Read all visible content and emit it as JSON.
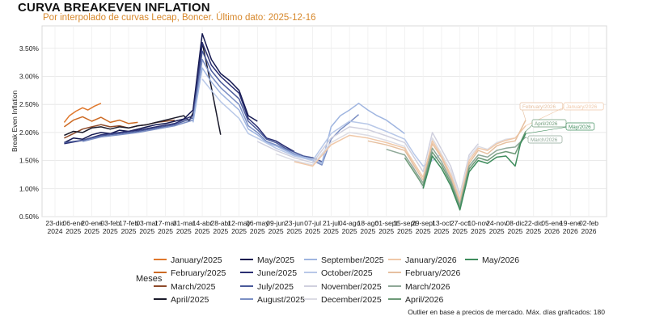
{
  "chart_data": {
    "type": "line",
    "title": "CURVA BREAKEVEN INFLATION",
    "subtitle": "Por interpolado de curvas Lecap, Boncer. Último dato: 2025-12-16",
    "ylabel": "Break Even Inflation",
    "xlabel": "",
    "caption": "Outlier en base a precios de mercado. Máx. días graficados: 180",
    "legend_title": "Meses",
    "legend_position": "bottom",
    "grid": true,
    "ylim": [
      0.5,
      3.9
    ],
    "y_ticks": [
      0.5,
      1.0,
      1.5,
      2.0,
      2.5,
      3.0,
      3.5
    ],
    "y_tick_labels": [
      "0.50%",
      "1.00%",
      "1.50%",
      "2.00%",
      "2.50%",
      "3.00%",
      "3.50%"
    ],
    "x_range": [
      "2024-12-23",
      "2026-02-02"
    ],
    "x_ticks": [
      "2024-12-23",
      "2025-01-06",
      "2025-01-20",
      "2025-02-03",
      "2025-02-17",
      "2025-03-03",
      "2025-03-17",
      "2025-03-31",
      "2025-04-14",
      "2025-04-28",
      "2025-05-12",
      "2025-05-26",
      "2025-06-09",
      "2025-06-23",
      "2025-07-07",
      "2025-07-21",
      "2025-08-04",
      "2025-08-18",
      "2025-09-01",
      "2025-09-15",
      "2025-09-29",
      "2025-10-13",
      "2025-10-27",
      "2025-11-10",
      "2025-11-24",
      "2025-12-08",
      "2025-12-22",
      "2026-01-05",
      "2026-01-19",
      "2026-02-02"
    ],
    "x_tick_top": [
      "23-dic",
      "06-ene",
      "20-ene",
      "03-feb",
      "17-feb",
      "03-mar",
      "17-mar",
      "31-mar",
      "14-abr",
      "28-abr",
      "12-may",
      "26-may",
      "09-jun",
      "23-jun",
      "07-jul",
      "21-jul",
      "04-ago",
      "18-ago",
      "01-sept",
      "15-sept",
      "29-sept",
      "13-oct",
      "27-oct",
      "10-nov",
      "24-nov",
      "08-dic",
      "22-dic",
      "05-ene",
      "19-ene",
      "02-feb"
    ],
    "x_tick_bottom": [
      "2024",
      "2025",
      "2025",
      "2025",
      "2025",
      "2025",
      "2025",
      "2025",
      "2025",
      "2025",
      "2025",
      "2025",
      "2025",
      "2025",
      "2025",
      "2025",
      "2025",
      "2025",
      "2025",
      "2025",
      "2025",
      "2025",
      "2025",
      "2025",
      "2025",
      "2025",
      "2025",
      "2026",
      "2026",
      "2026"
    ],
    "series": [
      {
        "name": "January/2025",
        "color": "#e0782c",
        "x": [
          "2024-12-30",
          "2025-01-03",
          "2025-01-08",
          "2025-01-13",
          "2025-01-17",
          "2025-01-22",
          "2025-01-27"
        ],
        "values": [
          2.18,
          2.3,
          2.38,
          2.44,
          2.4,
          2.47,
          2.52
        ]
      },
      {
        "name": "February/2025",
        "color": "#cc6a24",
        "x": [
          "2024-12-30",
          "2025-01-06",
          "2025-01-13",
          "2025-01-20",
          "2025-01-27",
          "2025-02-03",
          "2025-02-10",
          "2025-02-17",
          "2025-02-24"
        ],
        "values": [
          2.1,
          2.22,
          2.28,
          2.2,
          2.27,
          2.18,
          2.22,
          2.16,
          2.18
        ]
      },
      {
        "name": "March/2025",
        "color": "#8e4a2a",
        "x": [
          "2024-12-30",
          "2025-01-06",
          "2025-01-13",
          "2025-01-20",
          "2025-01-27",
          "2025-02-03",
          "2025-02-10",
          "2025-02-17",
          "2025-02-24",
          "2025-03-03",
          "2025-03-10",
          "2025-03-17",
          "2025-03-24"
        ],
        "values": [
          1.9,
          1.98,
          2.06,
          2.1,
          2.14,
          2.1,
          2.12,
          2.08,
          2.12,
          2.14,
          2.18,
          2.2,
          2.22
        ]
      },
      {
        "name": "April/2025",
        "color": "#1a1a2a",
        "x": [
          "2024-12-30",
          "2025-01-06",
          "2025-01-13",
          "2025-01-20",
          "2025-01-27",
          "2025-02-03",
          "2025-02-10",
          "2025-02-17",
          "2025-02-24",
          "2025-03-03",
          "2025-03-10",
          "2025-03-17",
          "2025-03-24",
          "2025-03-31",
          "2025-04-04",
          "2025-04-08",
          "2025-04-14",
          "2025-04-21",
          "2025-04-28"
        ],
        "values": [
          1.95,
          2.02,
          2.0,
          2.08,
          2.1,
          2.06,
          2.1,
          2.08,
          2.12,
          2.14,
          2.18,
          2.22,
          2.26,
          2.3,
          2.2,
          2.4,
          3.6,
          2.8,
          1.96
        ]
      },
      {
        "name": "May/2025",
        "color": "#141850",
        "x": [
          "2024-12-30",
          "2025-01-06",
          "2025-01-13",
          "2025-01-20",
          "2025-01-27",
          "2025-02-03",
          "2025-02-10",
          "2025-02-17",
          "2025-02-24",
          "2025-03-03",
          "2025-03-10",
          "2025-03-17",
          "2025-03-24",
          "2025-03-31",
          "2025-04-07",
          "2025-04-14",
          "2025-04-21",
          "2025-04-28",
          "2025-05-05",
          "2025-05-12",
          "2025-05-19",
          "2025-05-26"
        ],
        "values": [
          1.82,
          1.9,
          1.88,
          1.96,
          2.0,
          1.98,
          2.04,
          2.02,
          2.06,
          2.1,
          2.14,
          2.16,
          2.2,
          2.24,
          2.4,
          3.76,
          3.3,
          3.05,
          2.92,
          2.75,
          2.3,
          2.2
        ]
      },
      {
        "name": "June/2025",
        "color": "#2a2f72",
        "x": [
          "2024-12-30",
          "2025-01-13",
          "2025-01-27",
          "2025-02-10",
          "2025-02-24",
          "2025-03-10",
          "2025-03-24",
          "2025-04-07",
          "2025-04-14",
          "2025-04-21",
          "2025-04-28",
          "2025-05-05",
          "2025-05-12",
          "2025-05-19",
          "2025-05-26",
          "2025-06-02",
          "2025-06-09",
          "2025-06-16",
          "2025-06-23"
        ],
        "values": [
          1.8,
          1.86,
          1.96,
          2.0,
          2.04,
          2.1,
          2.16,
          2.3,
          3.6,
          3.2,
          3.0,
          2.85,
          2.7,
          2.25,
          2.1,
          1.9,
          1.85,
          1.75,
          1.66
        ]
      },
      {
        "name": "July/2025",
        "color": "#4a5a9a",
        "x": [
          "2024-12-30",
          "2025-01-13",
          "2025-01-27",
          "2025-02-10",
          "2025-02-24",
          "2025-03-10",
          "2025-03-24",
          "2025-04-07",
          "2025-04-14",
          "2025-04-21",
          "2025-04-28",
          "2025-05-05",
          "2025-05-12",
          "2025-05-19",
          "2025-05-26",
          "2025-06-02",
          "2025-06-09",
          "2025-06-16",
          "2025-06-23",
          "2025-06-30",
          "2025-07-07",
          "2025-07-14"
        ],
        "values": [
          1.82,
          1.86,
          1.94,
          1.98,
          2.02,
          2.08,
          2.14,
          2.26,
          3.45,
          3.1,
          2.9,
          2.75,
          2.6,
          2.2,
          2.05,
          1.88,
          1.82,
          1.72,
          1.65,
          1.58,
          1.55,
          1.48
        ]
      },
      {
        "name": "August/2025",
        "color": "#7b8fc4",
        "x": [
          "2025-01-13",
          "2025-01-27",
          "2025-02-10",
          "2025-02-24",
          "2025-03-10",
          "2025-03-24",
          "2025-04-07",
          "2025-04-14",
          "2025-04-21",
          "2025-04-28",
          "2025-05-05",
          "2025-05-12",
          "2025-05-19",
          "2025-05-26",
          "2025-06-02",
          "2025-06-09",
          "2025-06-16",
          "2025-06-23",
          "2025-06-30",
          "2025-07-07",
          "2025-07-14",
          "2025-07-21",
          "2025-07-28",
          "2025-08-04",
          "2025-08-11"
        ],
        "values": [
          1.84,
          1.92,
          1.96,
          2.0,
          2.06,
          2.12,
          2.22,
          3.3,
          3.0,
          2.8,
          2.65,
          2.5,
          2.12,
          2.0,
          1.84,
          1.78,
          1.7,
          1.62,
          1.56,
          1.5,
          1.42,
          1.88,
          2.05,
          2.18,
          2.32
        ]
      },
      {
        "name": "September/2025",
        "color": "#9fb5e0",
        "x": [
          "2025-04-07",
          "2025-04-14",
          "2025-04-21",
          "2025-04-28",
          "2025-05-05",
          "2025-05-12",
          "2025-05-19",
          "2025-05-26",
          "2025-06-02",
          "2025-06-09",
          "2025-06-16",
          "2025-06-23",
          "2025-06-30",
          "2025-07-07",
          "2025-07-14",
          "2025-07-21",
          "2025-07-28",
          "2025-08-04",
          "2025-08-11",
          "2025-08-18",
          "2025-08-25",
          "2025-09-01",
          "2025-09-08",
          "2025-09-15"
        ],
        "values": [
          2.18,
          3.15,
          2.9,
          2.7,
          2.55,
          2.4,
          2.06,
          1.96,
          1.82,
          1.76,
          1.68,
          1.6,
          1.56,
          1.52,
          1.45,
          2.1,
          2.3,
          2.4,
          2.52,
          2.4,
          2.3,
          2.22,
          2.1,
          1.98
        ]
      },
      {
        "name": "October/2025",
        "color": "#b8c8e8",
        "x": [
          "2025-04-14",
          "2025-04-21",
          "2025-04-28",
          "2025-05-05",
          "2025-05-12",
          "2025-05-19",
          "2025-05-26",
          "2025-06-09",
          "2025-06-23",
          "2025-07-07",
          "2025-07-21",
          "2025-08-04",
          "2025-08-18",
          "2025-09-01",
          "2025-09-15",
          "2025-09-22",
          "2025-09-29",
          "2025-10-06",
          "2025-10-13"
        ],
        "values": [
          2.95,
          2.75,
          2.55,
          2.4,
          2.25,
          1.98,
          1.9,
          1.72,
          1.58,
          1.5,
          1.98,
          2.2,
          2.15,
          2.02,
          1.88,
          1.62,
          1.4,
          1.5,
          1.62
        ]
      },
      {
        "name": "November/2025",
        "color": "#d0d0de",
        "x": [
          "2025-05-26",
          "2025-06-09",
          "2025-06-23",
          "2025-07-07",
          "2025-07-21",
          "2025-08-04",
          "2025-08-18",
          "2025-09-01",
          "2025-09-15",
          "2025-09-29",
          "2025-10-06",
          "2025-10-13",
          "2025-10-20",
          "2025-10-27",
          "2025-11-03",
          "2025-11-10"
        ],
        "values": [
          1.84,
          1.68,
          1.55,
          1.46,
          1.9,
          2.1,
          2.05,
          1.94,
          1.82,
          1.3,
          2.0,
          1.7,
          1.4,
          0.9,
          1.6,
          1.8
        ]
      },
      {
        "name": "December/2025",
        "color": "#dcdce4",
        "x": [
          "2025-06-09",
          "2025-06-23",
          "2025-07-07",
          "2025-07-21",
          "2025-08-04",
          "2025-08-18",
          "2025-09-01",
          "2025-09-15",
          "2025-09-29",
          "2025-10-06",
          "2025-10-13",
          "2025-10-20",
          "2025-10-27",
          "2025-11-03",
          "2025-11-10",
          "2025-11-17",
          "2025-11-24",
          "2025-12-01",
          "2025-12-08"
        ],
        "values": [
          1.62,
          1.5,
          1.42,
          1.82,
          2.0,
          1.95,
          1.86,
          1.75,
          1.0,
          1.9,
          1.62,
          1.32,
          0.85,
          1.55,
          1.75,
          1.7,
          1.82,
          1.88,
          1.9
        ]
      },
      {
        "name": "January/2026",
        "color": "#f0c8a8",
        "x": [
          "2025-06-23",
          "2025-07-07",
          "2025-07-21",
          "2025-08-04",
          "2025-08-18",
          "2025-09-01",
          "2025-09-15",
          "2025-09-29",
          "2025-10-06",
          "2025-10-13",
          "2025-10-20",
          "2025-10-27",
          "2025-11-03",
          "2025-11-10",
          "2025-11-17",
          "2025-11-24",
          "2025-12-01",
          "2025-12-08",
          "2025-12-16"
        ],
        "values": [
          1.48,
          1.4,
          1.78,
          1.95,
          1.9,
          1.82,
          1.72,
          1.2,
          1.85,
          1.58,
          1.25,
          0.8,
          1.5,
          1.72,
          1.68,
          1.8,
          1.86,
          1.9,
          2.12
        ]
      },
      {
        "name": "February/2026",
        "color": "#e6c0a0",
        "x": [
          "2025-08-18",
          "2025-09-01",
          "2025-09-15",
          "2025-09-29",
          "2025-10-06",
          "2025-10-13",
          "2025-10-20",
          "2025-10-27",
          "2025-11-03",
          "2025-11-10",
          "2025-11-17",
          "2025-11-24",
          "2025-12-01",
          "2025-12-08",
          "2025-12-16"
        ],
        "values": [
          1.85,
          1.78,
          1.68,
          1.15,
          1.8,
          1.55,
          1.2,
          0.75,
          1.45,
          1.68,
          1.62,
          1.76,
          1.82,
          1.85,
          2.22
        ]
      },
      {
        "name": "March/2026",
        "color": "#8fa898",
        "x": [
          "2025-09-01",
          "2025-09-15",
          "2025-09-29",
          "2025-10-06",
          "2025-10-13",
          "2025-10-20",
          "2025-10-27",
          "2025-11-03",
          "2025-11-10",
          "2025-11-17",
          "2025-11-24",
          "2025-12-01",
          "2025-12-08",
          "2025-12-16"
        ],
        "values": [
          1.7,
          1.6,
          1.1,
          1.72,
          1.48,
          1.15,
          0.7,
          1.4,
          1.6,
          1.56,
          1.68,
          1.72,
          1.74,
          1.92
        ]
      },
      {
        "name": "April/2026",
        "color": "#6d9a78",
        "x": [
          "2025-09-15",
          "2025-09-29",
          "2025-10-06",
          "2025-10-13",
          "2025-10-20",
          "2025-10-27",
          "2025-11-03",
          "2025-11-10",
          "2025-11-17",
          "2025-11-24",
          "2025-12-01",
          "2025-12-08",
          "2025-12-16"
        ],
        "values": [
          1.55,
          1.05,
          1.65,
          1.42,
          1.1,
          0.65,
          1.35,
          1.55,
          1.5,
          1.62,
          1.66,
          1.62,
          2.02
        ]
      },
      {
        "name": "May/2026",
        "color": "#3e8c5c",
        "x": [
          "2025-09-29",
          "2025-10-06",
          "2025-10-13",
          "2025-10-20",
          "2025-10-27",
          "2025-11-03",
          "2025-11-10",
          "2025-11-17",
          "2025-11-24",
          "2025-12-01",
          "2025-12-08",
          "2025-12-12",
          "2025-12-16"
        ],
        "values": [
          1.0,
          1.58,
          1.36,
          1.05,
          0.62,
          1.3,
          1.5,
          1.45,
          1.56,
          1.58,
          1.4,
          1.8,
          1.98
        ]
      }
    ],
    "end_labels": [
      {
        "text": "February/2026",
        "series": "February/2026"
      },
      {
        "text": "January/2026",
        "series": "January/2026"
      },
      {
        "text": "April/2026",
        "series": "April/2026"
      },
      {
        "text": "May/2026",
        "series": "May/2026"
      },
      {
        "text": "March/2026",
        "series": "March/2026"
      }
    ]
  }
}
